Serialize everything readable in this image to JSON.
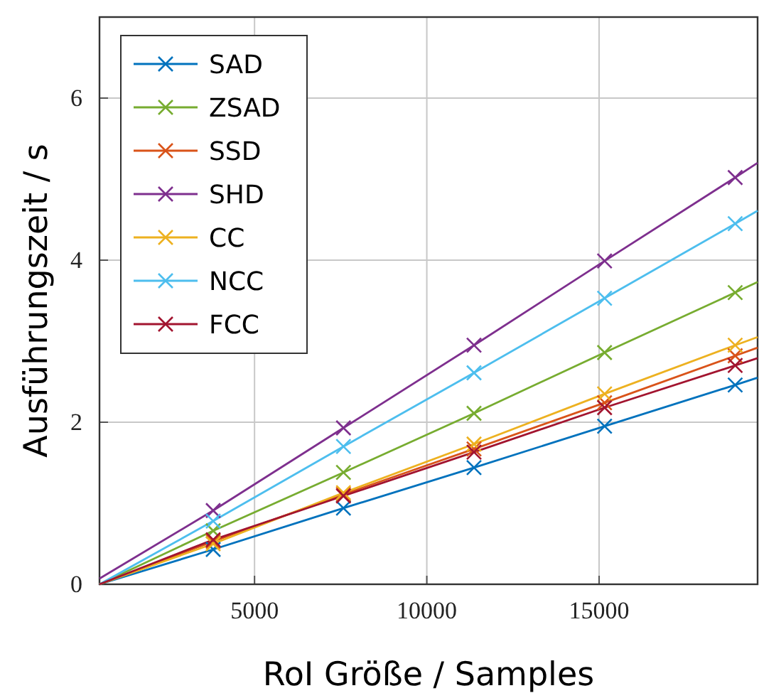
{
  "chart_data": {
    "type": "line",
    "xlabel": "RoI Größe / Samples",
    "ylabel": "Ausführungszeit  / s",
    "xlim": [
      500,
      19600
    ],
    "ylim": [
      0,
      7
    ],
    "xticks": [
      5000,
      10000,
      15000
    ],
    "yticks": [
      0,
      2,
      4,
      6
    ],
    "grid": true,
    "legend": "top left",
    "series": [
      {
        "name": "SAD",
        "type": "scatter",
        "marker": "cross",
        "color": "#0072bd",
        "x": [
          3800,
          7580,
          11370,
          15160,
          18950
        ],
        "values": [
          0.43,
          0.94,
          1.44,
          1.95,
          2.46
        ]
      },
      {
        "name": "ZSAD",
        "type": "scatter",
        "marker": "cross",
        "color": "#77ac30",
        "x": [
          3800,
          7580,
          11370,
          15160,
          18950
        ],
        "values": [
          0.66,
          1.38,
          2.11,
          2.86,
          3.6
        ]
      },
      {
        "name": "SSD",
        "type": "scatter",
        "marker": "cross",
        "color": "#d95319",
        "x": [
          3800,
          7580,
          11370,
          15160,
          18950
        ],
        "values": [
          0.53,
          1.11,
          1.67,
          2.24,
          2.82
        ]
      },
      {
        "name": "SHD",
        "type": "scatter",
        "marker": "cross",
        "color": "#7e2f8e",
        "x": [
          3800,
          7580,
          11370,
          15160,
          18950
        ],
        "values": [
          0.91,
          1.93,
          2.95,
          3.99,
          5.02
        ]
      },
      {
        "name": "CC",
        "type": "scatter",
        "marker": "cross",
        "color": "#edb120",
        "x": [
          3800,
          7580,
          11370,
          15160,
          18950
        ],
        "values": [
          0.5,
          1.13,
          1.73,
          2.35,
          2.95
        ]
      },
      {
        "name": "NCC",
        "type": "scatter",
        "marker": "cross",
        "color": "#4dbeee",
        "x": [
          3800,
          7580,
          11370,
          15160,
          18950
        ],
        "values": [
          0.78,
          1.7,
          2.61,
          3.53,
          4.45
        ]
      },
      {
        "name": "FCC",
        "type": "scatter",
        "marker": "cross",
        "color": "#a2142f",
        "x": [
          3800,
          7580,
          11370,
          15160,
          18950
        ],
        "values": [
          0.55,
          1.09,
          1.63,
          2.18,
          2.7
        ]
      },
      {
        "type": "line",
        "marker": "none",
        "color": "#0072bd",
        "x": [
          500,
          3800,
          7580,
          11370,
          15160,
          18950,
          19600
        ],
        "values": [
          0,
          0.43,
          0.94,
          1.44,
          1.95,
          2.46,
          2.55
        ]
      },
      {
        "type": "line",
        "marker": "none",
        "color": "#77ac30",
        "x": [
          500,
          3800,
          7580,
          11370,
          15160,
          18950,
          19600
        ],
        "values": [
          0,
          0.66,
          1.38,
          2.11,
          2.86,
          3.6,
          3.73
        ]
      },
      {
        "type": "line",
        "marker": "none",
        "color": "#d95319",
        "x": [
          500,
          3800,
          7580,
          11370,
          15160,
          18950,
          19600
        ],
        "values": [
          0,
          0.53,
          1.11,
          1.67,
          2.24,
          2.82,
          2.92
        ]
      },
      {
        "type": "line",
        "marker": "none",
        "color": "#7e2f8e",
        "x": [
          500,
          3800,
          7580,
          11370,
          15160,
          18950,
          19600
        ],
        "values": [
          0.07,
          0.91,
          1.93,
          2.95,
          3.99,
          5.02,
          5.2
        ]
      },
      {
        "type": "line",
        "marker": "none",
        "color": "#edb120",
        "x": [
          500,
          3800,
          7580,
          11370,
          15160,
          18950,
          19600
        ],
        "values": [
          0,
          0.5,
          1.13,
          1.73,
          2.35,
          2.95,
          3.05
        ]
      },
      {
        "type": "line",
        "marker": "none",
        "color": "#4dbeee",
        "x": [
          500,
          3800,
          7580,
          11370,
          15160,
          18950,
          19600
        ],
        "values": [
          0,
          0.78,
          1.7,
          2.61,
          3.53,
          4.45,
          4.61
        ]
      },
      {
        "type": "line",
        "marker": "none",
        "color": "#a2142f",
        "x": [
          500,
          3800,
          7580,
          11370,
          15160,
          18950,
          19600
        ],
        "values": [
          0,
          0.55,
          1.09,
          1.63,
          2.18,
          2.7,
          2.79
        ]
      }
    ]
  }
}
